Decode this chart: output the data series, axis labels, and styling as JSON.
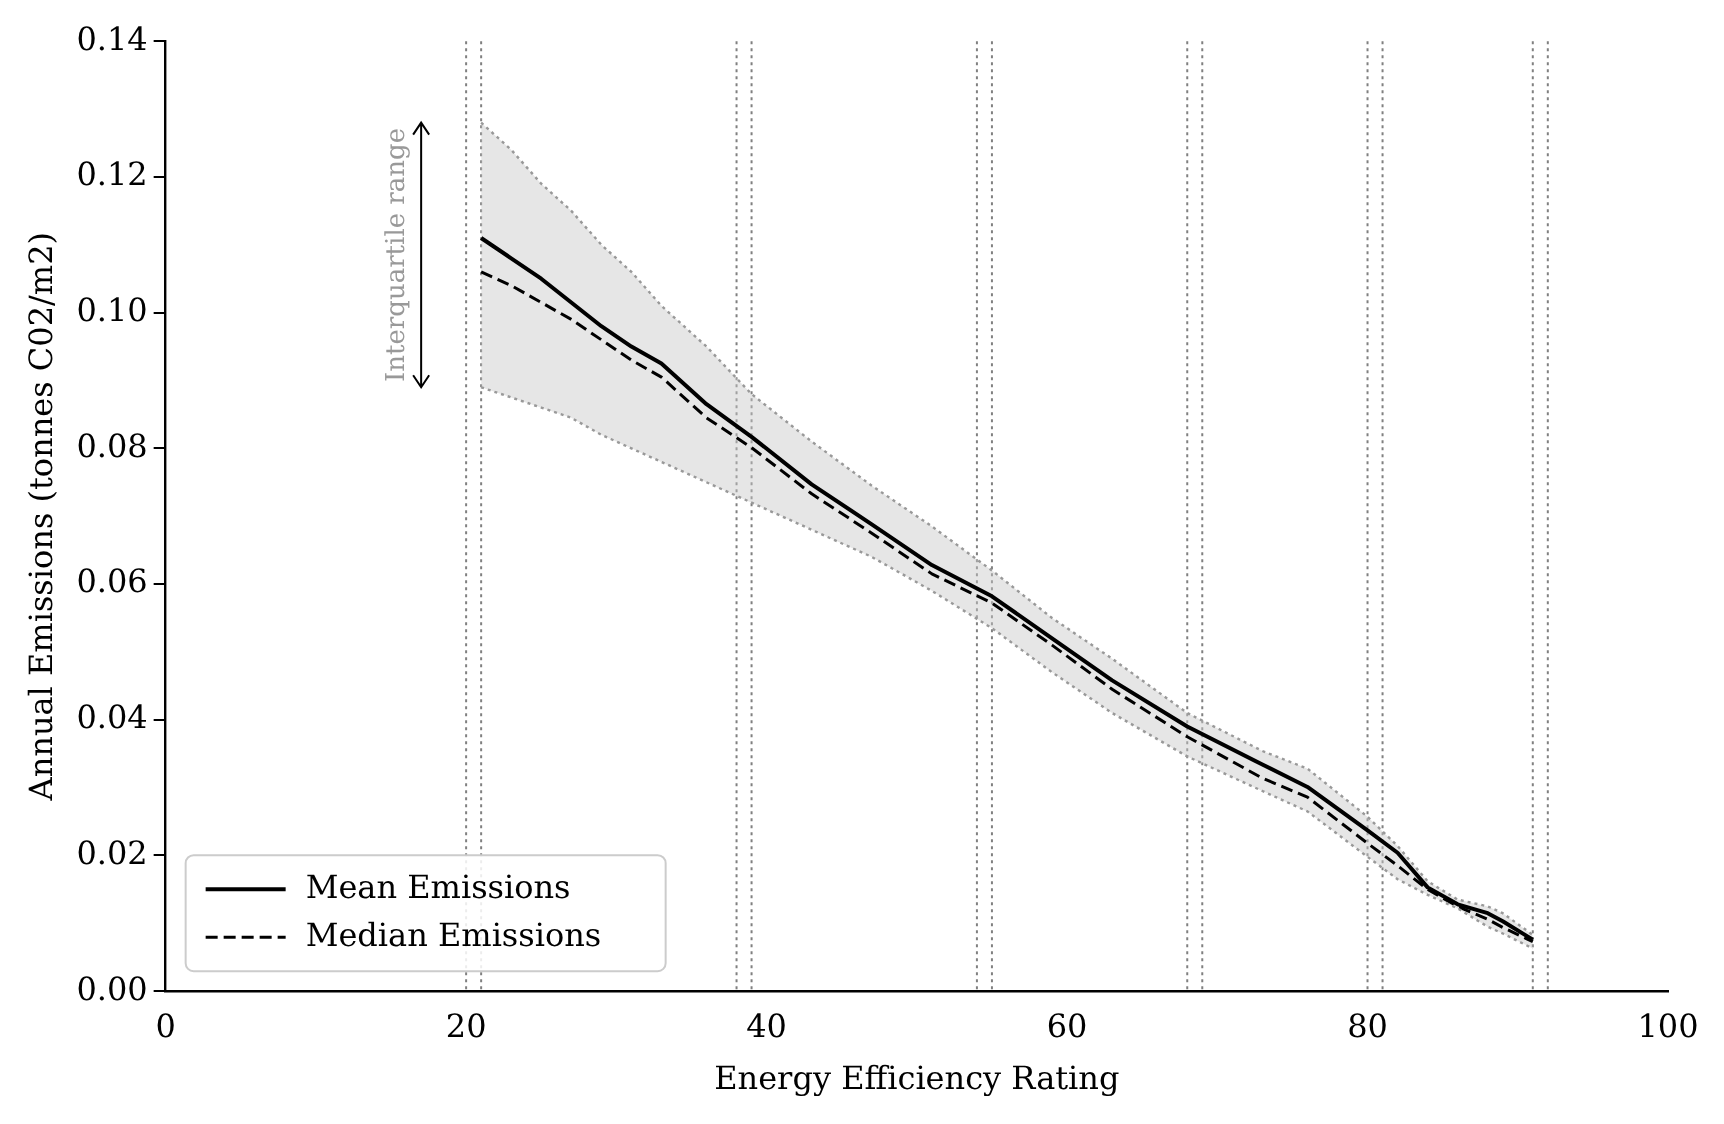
{
  "chart_data": {
    "type": "line",
    "xlabel": "Energy Efficiency Rating",
    "ylabel": "Annual Emissions (tonnes C02/m2)",
    "x": [
      21,
      23,
      25,
      27,
      29,
      31,
      33,
      36,
      39,
      43,
      47,
      51,
      55,
      59,
      63,
      68,
      73,
      76,
      80,
      82,
      84,
      86,
      88,
      89,
      91
    ],
    "series": [
      {
        "name": "Mean Emissions",
        "color": "#000000",
        "line_style": "solid",
        "values": [
          0.111,
          0.108,
          0.105,
          0.1015,
          0.098,
          0.095,
          0.0925,
          0.0865,
          0.0817,
          0.0747,
          0.0688,
          0.0628,
          0.0582,
          0.052,
          0.0458,
          0.039,
          0.0334,
          0.0301,
          0.0237,
          0.0204,
          0.0153,
          0.0128,
          0.0115,
          0.0103,
          0.0076
        ],
        "lower": [
          0.089,
          0.0875,
          0.086,
          0.0845,
          0.082,
          0.08,
          0.078,
          0.075,
          0.072,
          0.068,
          0.064,
          0.059,
          0.0535,
          0.047,
          0.041,
          0.0346,
          0.0295,
          0.0265,
          0.0198,
          0.0165,
          0.0142,
          0.0122,
          0.0095,
          0.0085,
          0.0063
        ],
        "upper": [
          0.128,
          0.124,
          0.119,
          0.115,
          0.11,
          0.106,
          0.101,
          0.095,
          0.088,
          0.081,
          0.0745,
          0.0685,
          0.062,
          0.055,
          0.049,
          0.041,
          0.0354,
          0.0328,
          0.0257,
          0.0214,
          0.0162,
          0.0135,
          0.0125,
          0.0115,
          0.0083
        ]
      },
      {
        "color": "#999999",
        "line_style": "dotted",
        "values": [
          0.089,
          0.0875,
          0.086,
          0.0845,
          0.082,
          0.08,
          0.078,
          0.075,
          0.072,
          0.068,
          0.064,
          0.059,
          0.0535,
          0.047,
          0.041,
          0.0346,
          0.0295,
          0.0265,
          0.0198,
          0.0165,
          0.0142,
          0.0122,
          0.0095,
          0.0085,
          0.0063
        ]
      },
      {
        "color": "#999999",
        "line_style": "dotted",
        "values": [
          0.128,
          0.124,
          0.119,
          0.115,
          0.11,
          0.106,
          0.101,
          0.095,
          0.088,
          0.081,
          0.0745,
          0.0685,
          0.062,
          0.055,
          0.049,
          0.041,
          0.0354,
          0.0328,
          0.0257,
          0.0214,
          0.0162,
          0.0135,
          0.0125,
          0.0115,
          0.0083
        ]
      },
      {
        "name": "Median Emissions",
        "color": "#000000",
        "line_style": "dashed",
        "values": [
          0.106,
          0.104,
          0.1015,
          0.099,
          0.096,
          0.093,
          0.0905,
          0.0845,
          0.0801,
          0.0733,
          0.0675,
          0.0615,
          0.0572,
          0.051,
          0.0445,
          0.0375,
          0.0314,
          0.0286,
          0.0218,
          0.0185,
          0.015,
          0.0125,
          0.0106,
          0.0094,
          0.0073
        ]
      }
    ],
    "xlim": [
      0,
      100
    ],
    "xticks": [
      0,
      20,
      40,
      60,
      80,
      100
    ],
    "ylim": [
      0,
      0.14
    ],
    "yticks": [
      {
        "value": 0,
        "label": "0.00"
      },
      {
        "value": 0.02,
        "label": "0.02"
      },
      {
        "value": 0.04,
        "label": "0.04"
      },
      {
        "value": 0.06,
        "label": "0.06"
      },
      {
        "value": 0.08,
        "label": "0.08"
      },
      {
        "value": 0.1,
        "label": "0.10"
      },
      {
        "value": 0.12,
        "label": "0.12"
      },
      {
        "value": 0.14,
        "label": "0.14"
      }
    ],
    "ref_lines": [
      {
        "axis": "x",
        "value": 20,
        "color": "#808080",
        "line_style": "dotted"
      },
      {
        "axis": "x",
        "value": 21,
        "color": "#808080",
        "line_style": "dotted"
      },
      {
        "axis": "x",
        "value": 38,
        "color": "#808080",
        "line_style": "dotted"
      },
      {
        "axis": "x",
        "value": 39,
        "color": "#808080",
        "line_style": "dotted"
      },
      {
        "axis": "x",
        "value": 54,
        "color": "#808080",
        "line_style": "dotted"
      },
      {
        "axis": "x",
        "value": 55,
        "color": "#808080",
        "line_style": "dotted"
      },
      {
        "axis": "x",
        "value": 68,
        "color": "#808080",
        "line_style": "dotted"
      },
      {
        "axis": "x",
        "value": 69,
        "color": "#808080",
        "line_style": "dotted"
      },
      {
        "axis": "x",
        "value": 80,
        "color": "#808080",
        "line_style": "dotted"
      },
      {
        "axis": "x",
        "value": 81,
        "color": "#808080",
        "line_style": "dotted"
      },
      {
        "axis": "x",
        "value": 91,
        "color": "#808080",
        "line_style": "dotted"
      },
      {
        "axis": "x",
        "value": 92,
        "color": "#808080",
        "line_style": "dotted"
      }
    ],
    "annotations": [
      "Interquartile range"
    ],
    "grid": false,
    "legend": "bottom left",
    "marker": "none"
  }
}
